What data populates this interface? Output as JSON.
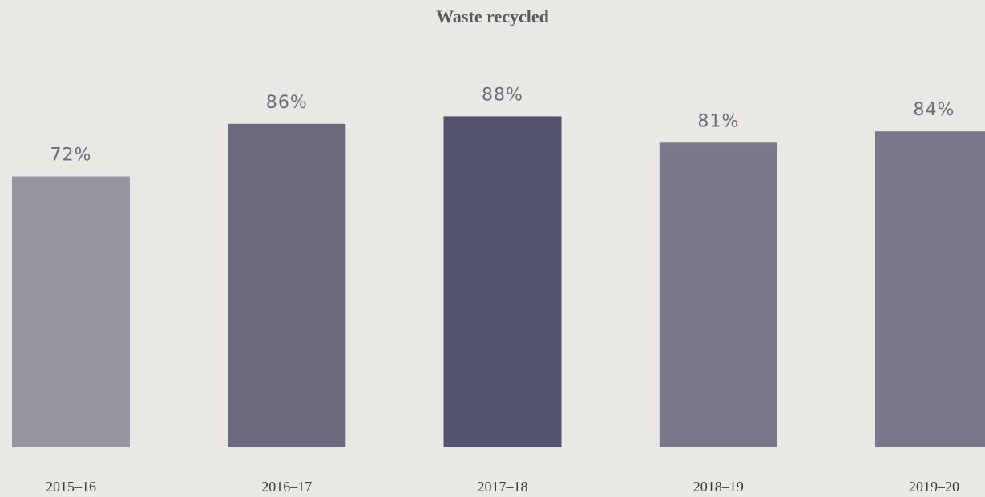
{
  "chart_data": {
    "type": "bar",
    "title": "Waste recycled",
    "xlabel": "",
    "ylabel": "",
    "unit": "%",
    "ylim": [
      0,
      100
    ],
    "grid": false,
    "categories": [
      "2015–16",
      "2016–17",
      "2017–18",
      "2018–19",
      "2019–20"
    ],
    "values": [
      72,
      86,
      88,
      81,
      84
    ],
    "value_labels": [
      "72%",
      "86%",
      "88%",
      "81%",
      "84%"
    ],
    "colors": [
      "#9895a2",
      "#6b697e",
      "#53536e",
      "#797789",
      "#797789"
    ]
  }
}
